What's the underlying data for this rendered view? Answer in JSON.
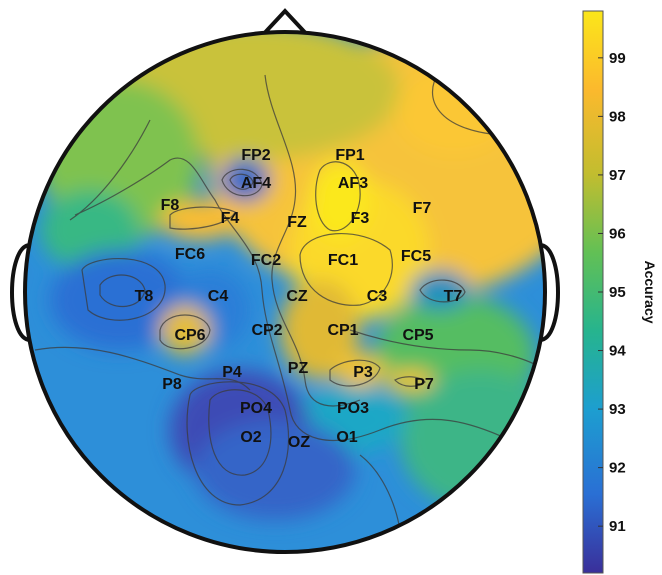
{
  "chart_data": {
    "type": "heatmap",
    "subtype": "eeg-topographic-map",
    "colorbar": {
      "title": "Accuracy",
      "ticks": [
        91,
        92,
        93,
        94,
        95,
        96,
        97,
        98,
        99
      ],
      "range": [
        90.2,
        99.8
      ],
      "colors": [
        "#3a2f9a",
        "#2a6fd4",
        "#1d9ed0",
        "#26b48e",
        "#62c055",
        "#c2bd2f",
        "#fbb92d",
        "#fbe61a"
      ]
    },
    "electrodes": [
      {
        "label": "FP2",
        "value": 96.5
      },
      {
        "label": "FP1",
        "value": 97.2
      },
      {
        "label": "AF4",
        "value": 92.0
      },
      {
        "label": "AF3",
        "value": 99.6
      },
      {
        "label": "F8",
        "value": 97.0
      },
      {
        "label": "F4",
        "value": 98.2
      },
      {
        "label": "FZ",
        "value": 97.5
      },
      {
        "label": "F3",
        "value": 99.3
      },
      {
        "label": "F7",
        "value": 97.6
      },
      {
        "label": "FC6",
        "value": 96.0
      },
      {
        "label": "FC2",
        "value": 96.3
      },
      {
        "label": "FC1",
        "value": 98.8
      },
      {
        "label": "FC5",
        "value": 97.0
      },
      {
        "label": "T8",
        "value": 92.0
      },
      {
        "label": "C4",
        "value": 93.5
      },
      {
        "label": "CZ",
        "value": 97.2
      },
      {
        "label": "C3",
        "value": 98.0
      },
      {
        "label": "T7",
        "value": 94.8
      },
      {
        "label": "CP6",
        "value": 97.8
      },
      {
        "label": "CP2",
        "value": 95.5
      },
      {
        "label": "CP1",
        "value": 96.5
      },
      {
        "label": "CP5",
        "value": 96.0
      },
      {
        "label": "P8",
        "value": 93.3
      },
      {
        "label": "P4",
        "value": 93.0
      },
      {
        "label": "PZ",
        "value": 95.5
      },
      {
        "label": "P3",
        "value": 97.2
      },
      {
        "label": "P7",
        "value": 97.5
      },
      {
        "label": "PO4",
        "value": 90.8
      },
      {
        "label": "PO3",
        "value": 94.5
      },
      {
        "label": "O2",
        "value": 91.2
      },
      {
        "label": "OZ",
        "value": 92.5
      },
      {
        "label": "O1",
        "value": 93.0
      }
    ]
  }
}
